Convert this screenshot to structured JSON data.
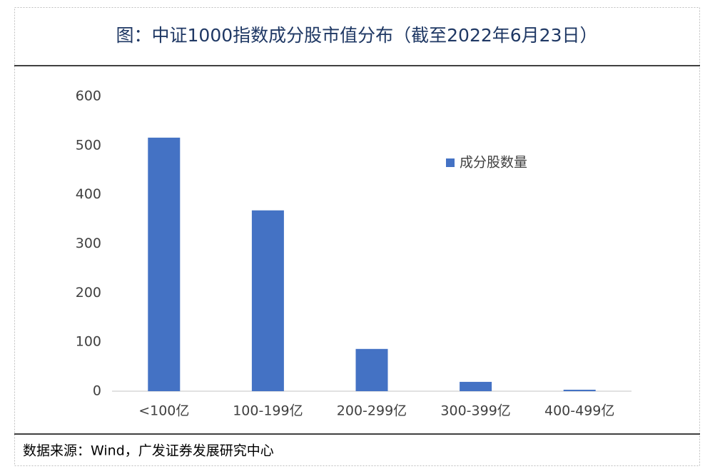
{
  "chart_data": {
    "type": "bar",
    "title": "图：中证1000指数成分股市值分布（截至2022年6月23日）",
    "categories": [
      "<100亿",
      "100-199亿",
      "200-299亿",
      "300-399亿",
      "400-499亿"
    ],
    "series": [
      {
        "name": "成分股数量",
        "color": "#4472c4",
        "values": [
          516,
          368,
          86,
          19,
          3
        ]
      }
    ],
    "ylim": [
      0,
      600
    ],
    "yticks": [
      0,
      100,
      200,
      300,
      400,
      500,
      600
    ],
    "grid": false,
    "legend": "upper right",
    "source": "数据来源：Wind，广发证券发展研究中心"
  }
}
